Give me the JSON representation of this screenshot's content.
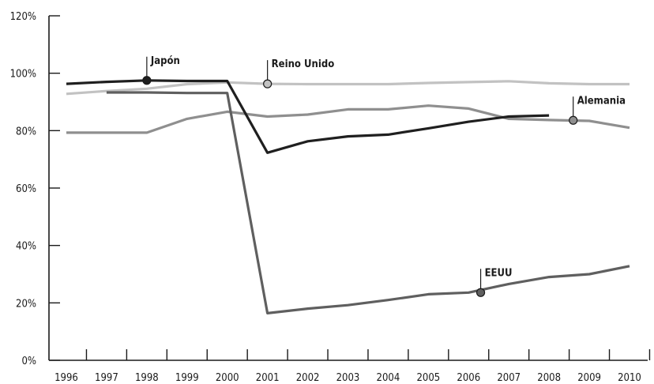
{
  "chart_data": {
    "type": "line",
    "x": [
      1996,
      1997,
      1998,
      1999,
      2000,
      2001,
      2002,
      2003,
      2004,
      2005,
      2006,
      2007,
      2008,
      2009,
      2010
    ],
    "x_tick_labels": [
      "1996",
      "1997",
      "1998",
      "1999",
      "2000",
      "2001",
      "2002",
      "2003",
      "2004",
      "2005",
      "2006",
      "2007",
      "2008",
      "2009",
      "2010"
    ],
    "ylim": [
      0,
      120
    ],
    "y_ticks": [
      0,
      20,
      40,
      60,
      80,
      100,
      120
    ],
    "y_tick_labels": [
      "0%",
      "20%",
      "40%",
      "60%",
      "80%",
      "100%",
      "120%"
    ],
    "grid": false,
    "series": [
      {
        "name": "Reino Unido",
        "color": "#c2c2c2",
        "x": [
          1996,
          1997,
          1998,
          1999,
          2000,
          2001,
          2002,
          2003,
          2004,
          2005,
          2006,
          2007,
          2008,
          2009,
          2010
        ],
        "values": [
          92.8,
          93.8,
          94.6,
          96.2,
          96.8,
          96.3,
          96.2,
          96.2,
          96.2,
          96.6,
          96.9,
          97.2,
          96.5,
          96.2,
          96.2
        ]
      },
      {
        "name": "Alemania",
        "color": "#8f8f8f",
        "x": [
          1996,
          1997,
          1998,
          1999,
          2000,
          2001,
          2002,
          2003,
          2004,
          2005,
          2006,
          2007,
          2008,
          2009,
          2010
        ],
        "values": [
          79.3,
          79.3,
          79.3,
          84.1,
          86.6,
          84.9,
          85.6,
          87.4,
          87.4,
          88.7,
          87.7,
          84.1,
          83.7,
          83.4,
          81.0
        ]
      },
      {
        "name": "EEUU",
        "color": "#5f5f5f",
        "x": [
          1997,
          1998,
          1999,
          2000,
          2001,
          2002,
          2003,
          2004,
          2005,
          2006,
          2007,
          2008,
          2009,
          2010
        ],
        "values": [
          93.3,
          93.3,
          93.1,
          93.1,
          16.4,
          18.0,
          19.2,
          21.0,
          23.0,
          23.6,
          26.6,
          29.0,
          30.0,
          32.8
        ]
      },
      {
        "name": "Japón",
        "color": "#1f1f1f",
        "x": [
          1996,
          1997,
          1998,
          1999,
          2000,
          2001,
          2002,
          2003,
          2004,
          2005,
          2006,
          2007,
          2008
        ],
        "values": [
          96.3,
          97.0,
          97.5,
          97.3,
          97.3,
          72.3,
          76.3,
          78.0,
          78.6,
          80.8,
          83.1,
          84.9,
          85.3
        ]
      }
    ],
    "annotations": [
      {
        "series": "Japón",
        "label": "Japón",
        "x": 1998,
        "y": 97.5,
        "marker_color": "#1f1f1f"
      },
      {
        "series": "Reino Unido",
        "label": "Reino Unido",
        "x": 2001,
        "y": 96.3,
        "marker_color": "#c2c2c2"
      },
      {
        "series": "Alemania",
        "label": "Alemania",
        "x": 2008.6,
        "y": 83.6,
        "marker_color": "#8f8f8f"
      },
      {
        "series": "EEUU",
        "label": "EEUU",
        "x": 2006.3,
        "y": 23.6,
        "marker_color": "#5f5f5f"
      }
    ]
  }
}
